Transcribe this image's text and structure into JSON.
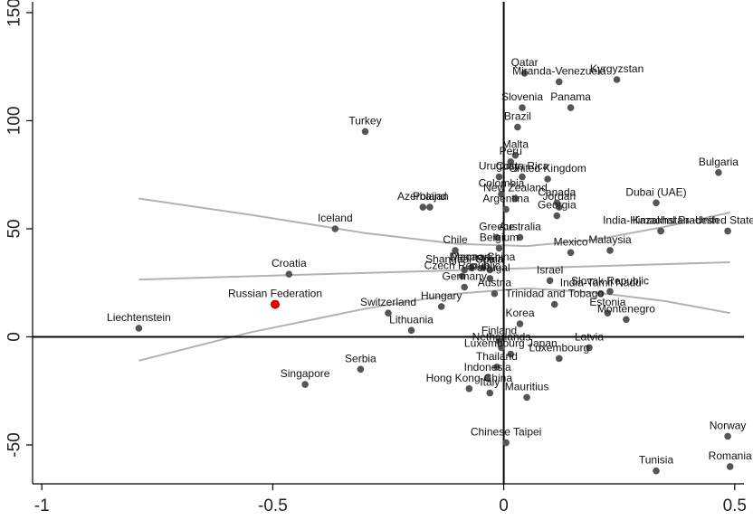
{
  "chart_data": {
    "type": "scatter",
    "xlim": [
      -1.02,
      0.52
    ],
    "ylim": [
      -68,
      155
    ],
    "x_ticks": [
      -1,
      -0.5,
      0,
      0.5
    ],
    "x_tick_labels": [
      "-1",
      "-0.5",
      "0",
      "0.5"
    ],
    "y_ticks": [
      -50,
      0,
      50,
      100,
      150
    ],
    "y_tick_labels": [
      "-50",
      "0",
      "50",
      "100",
      "150"
    ],
    "grid": false,
    "reference_lines": {
      "x": 0,
      "y": 0
    },
    "colors": {
      "point": "#555555",
      "highlight": "#ee0000",
      "fit": "#b3b3b3",
      "axis": "#000000"
    },
    "highlight": "Russian Federation",
    "points": [
      {
        "label": "Liechtenstein",
        "x": -0.79,
        "y": 4
      },
      {
        "label": "Russian Federation",
        "x": -0.495,
        "y": 15
      },
      {
        "label": "Croatia",
        "x": -0.465,
        "y": 29
      },
      {
        "label": "Singapore",
        "x": -0.43,
        "y": -22
      },
      {
        "label": "Iceland",
        "x": -0.365,
        "y": 50
      },
      {
        "label": "Serbia",
        "x": -0.31,
        "y": -15
      },
      {
        "label": "Turkey",
        "x": -0.3,
        "y": 95
      },
      {
        "label": "Switzerland",
        "x": -0.25,
        "y": 11
      },
      {
        "label": "Lithuania",
        "x": -0.2,
        "y": 3
      },
      {
        "label": "Azerbaijan",
        "x": -0.175,
        "y": 60
      },
      {
        "label": "Poland",
        "x": -0.16,
        "y": 60
      },
      {
        "label": "Hungary",
        "x": -0.135,
        "y": 14
      },
      {
        "label": "Chile",
        "x": -0.105,
        "y": 40
      },
      {
        "label": "Czech Republic",
        "x": -0.09,
        "y": 28
      },
      {
        "label": "Shanghai-China",
        "x": -0.085,
        "y": 31
      },
      {
        "label": "Germany",
        "x": -0.085,
        "y": 23
      },
      {
        "label": "Denmark",
        "x": -0.07,
        "y": 32
      },
      {
        "label": "Hong Kong-China",
        "x": -0.075,
        "y": -24
      },
      {
        "label": "Macao-China",
        "x": -0.045,
        "y": 32
      },
      {
        "label": "Indonesia",
        "x": -0.035,
        "y": -19
      },
      {
        "label": "Italy",
        "x": -0.03,
        "y": -26
      },
      {
        "label": "Spain",
        "x": -0.03,
        "y": 31
      },
      {
        "label": "Portugal",
        "x": -0.03,
        "y": 27
      },
      {
        "label": "Austria",
        "x": -0.02,
        "y": 20
      },
      {
        "label": "Greece",
        "x": -0.015,
        "y": 46
      },
      {
        "label": "Belgium",
        "x": -0.01,
        "y": 41
      },
      {
        "label": "Finland",
        "x": -0.01,
        "y": -2
      },
      {
        "label": "Thailand",
        "x": -0.015,
        "y": -14
      },
      {
        "label": "Chinese Taipei",
        "x": 0.005,
        "y": -49
      },
      {
        "label": "Netherlands",
        "x": -0.005,
        "y": -5
      },
      {
        "label": "Uruguay",
        "x": -0.01,
        "y": 74
      },
      {
        "label": "Colombia",
        "x": -0.005,
        "y": 66
      },
      {
        "label": "Argentina",
        "x": 0.005,
        "y": 59
      },
      {
        "label": "Luxembourg Japan",
        "x": 0.015,
        "y": -8
      },
      {
        "label": "Peru",
        "x": 0.015,
        "y": 81
      },
      {
        "label": "Malta",
        "x": 0.025,
        "y": 84
      },
      {
        "label": "New Zealand",
        "x": 0.025,
        "y": 64
      },
      {
        "label": "Australia",
        "x": 0.035,
        "y": 46
      },
      {
        "label": "Korea",
        "x": 0.035,
        "y": 6
      },
      {
        "label": "Brazil",
        "x": 0.03,
        "y": 97
      },
      {
        "label": "Costa Rica",
        "x": 0.04,
        "y": 74
      },
      {
        "label": "Mauritius",
        "x": 0.05,
        "y": -28
      },
      {
        "label": "Slovenia",
        "x": 0.04,
        "y": 106
      },
      {
        "label": "Qatar",
        "x": 0.045,
        "y": 122
      },
      {
        "label": "United Kingdom",
        "x": 0.095,
        "y": 73
      },
      {
        "label": "Israel",
        "x": 0.1,
        "y": 26
      },
      {
        "label": "Trinidad and Tobago",
        "x": 0.11,
        "y": 15
      },
      {
        "label": "Canada",
        "x": 0.115,
        "y": 62
      },
      {
        "label": "Georgia",
        "x": 0.115,
        "y": 56
      },
      {
        "label": "Jordan",
        "x": 0.12,
        "y": 60
      },
      {
        "label": "Miranda-Venezuela",
        "x": 0.12,
        "y": 118
      },
      {
        "label": "Luxembourg",
        "x": 0.12,
        "y": -10
      },
      {
        "label": "Mexico",
        "x": 0.145,
        "y": 39
      },
      {
        "label": "Panama",
        "x": 0.145,
        "y": 106
      },
      {
        "label": "Latvia",
        "x": 0.185,
        "y": -5
      },
      {
        "label": "India-Tamil Nadu",
        "x": 0.21,
        "y": 20
      },
      {
        "label": "Estonia",
        "x": 0.225,
        "y": 11
      },
      {
        "label": "Slovak Republic",
        "x": 0.23,
        "y": 21
      },
      {
        "label": "Malaysia",
        "x": 0.23,
        "y": 40
      },
      {
        "label": "Kyrgyzstan",
        "x": 0.245,
        "y": 119
      },
      {
        "label": "Montenegro",
        "x": 0.265,
        "y": 8
      },
      {
        "label": "Dubai (UAE)",
        "x": 0.33,
        "y": 62
      },
      {
        "label": "Tunisia",
        "x": 0.33,
        "y": -62
      },
      {
        "label": "Kazakhstan",
        "x": 0.34,
        "y": 49
      },
      {
        "label": "India-Himachal Pradesh",
        "x": 0.34,
        "y": 49
      },
      {
        "label": "Bulgaria",
        "x": 0.465,
        "y": 76
      },
      {
        "label": "United States",
        "x": 0.485,
        "y": 49
      },
      {
        "label": "Norway",
        "x": 0.485,
        "y": -46
      },
      {
        "label": "Romania",
        "x": 0.49,
        "y": -60
      }
    ],
    "fit_lines": [
      {
        "name": "linear",
        "x": [
          -0.79,
          0.49
        ],
        "y": [
          26.5,
          34.5
        ]
      },
      {
        "name": "quadratic upper",
        "x": [
          -0.79,
          -0.55,
          -0.3,
          -0.1,
          0.05,
          0.2,
          0.35,
          0.49
        ],
        "y": [
          64,
          56.5,
          48,
          43,
          42,
          45,
          51,
          57.5
        ]
      },
      {
        "name": "quadratic lower",
        "x": [
          -0.79,
          -0.55,
          -0.3,
          -0.1,
          0.05,
          0.2,
          0.35,
          0.49
        ],
        "y": [
          -11,
          2,
          13,
          20,
          22.5,
          20.5,
          16.5,
          11
        ]
      }
    ]
  }
}
